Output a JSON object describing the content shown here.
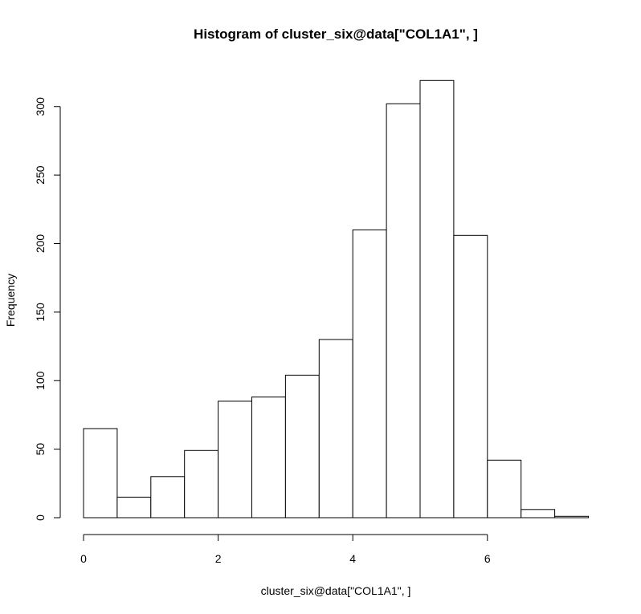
{
  "chart_data": {
    "type": "bar",
    "title": "Histogram of cluster_six@data[\"COL1A1\", ]",
    "xlabel": "cluster_six@data[\"COL1A1\", ]",
    "ylabel": "Frequency",
    "bins": [
      {
        "x0": 0.0,
        "x1": 0.5,
        "count": 65
      },
      {
        "x0": 0.5,
        "x1": 1.0,
        "count": 15
      },
      {
        "x0": 1.0,
        "x1": 1.5,
        "count": 30
      },
      {
        "x0": 1.5,
        "x1": 2.0,
        "count": 49
      },
      {
        "x0": 2.0,
        "x1": 2.5,
        "count": 85
      },
      {
        "x0": 2.5,
        "x1": 3.0,
        "count": 88
      },
      {
        "x0": 3.0,
        "x1": 3.5,
        "count": 104
      },
      {
        "x0": 3.5,
        "x1": 4.0,
        "count": 130
      },
      {
        "x0": 4.0,
        "x1": 4.5,
        "count": 210
      },
      {
        "x0": 4.5,
        "x1": 5.0,
        "count": 302
      },
      {
        "x0": 5.0,
        "x1": 5.5,
        "count": 319
      },
      {
        "x0": 5.5,
        "x1": 6.0,
        "count": 206
      },
      {
        "x0": 6.0,
        "x1": 6.5,
        "count": 42
      },
      {
        "x0": 6.5,
        "x1": 7.0,
        "count": 6
      },
      {
        "x0": 7.0,
        "x1": 7.5,
        "count": 1
      }
    ],
    "x_ticks": [
      0,
      2,
      4,
      6
    ],
    "y_ticks": [
      0,
      50,
      100,
      150,
      200,
      250,
      300
    ],
    "xlim": [
      0,
      7.5
    ],
    "ylim": [
      0,
      319
    ],
    "grid": false,
    "bar_fill": "#ffffff",
    "bar_stroke": "#000000"
  }
}
